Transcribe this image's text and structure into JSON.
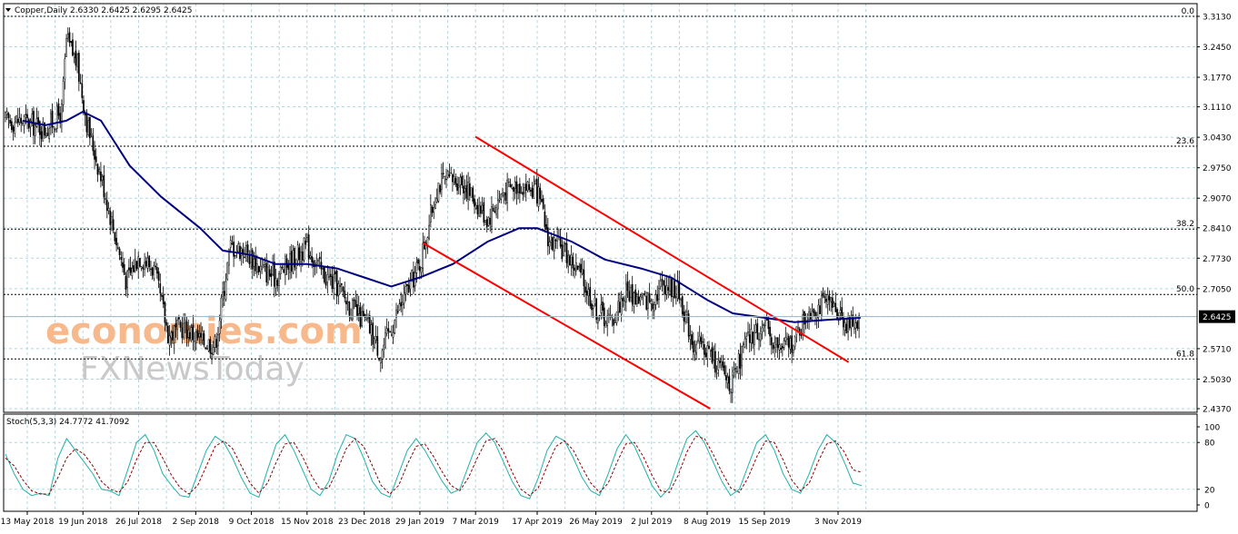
{
  "chart_data": [
    {
      "type": "candlestick",
      "symbol": "Copper",
      "timeframe": "Daily",
      "header": "Copper,Daily  2.6330 2.6425 2.6295 2.6425",
      "ohlc": {
        "open": 2.633,
        "high": 2.6425,
        "low": 2.6295,
        "close": 2.6425
      },
      "current_price": "2.6425",
      "price_ticks": [
        "3.3130",
        "3.2450",
        "3.1770",
        "3.1110",
        "3.0430",
        "2.9750",
        "2.9070",
        "2.8410",
        "2.7730",
        "2.7050",
        "2.6425",
        "2.5710",
        "2.5030",
        "2.4370"
      ],
      "x_ticks": [
        "13 May 2018",
        "19 Jun 2018",
        "26 Jul 2018",
        "2 Sep 2018",
        "9 Oct 2018",
        "15 Nov 2018",
        "23 Dec 2018",
        "29 Jan 2019",
        "7 Mar 2019",
        "17 Apr 2019",
        "26 May 2019",
        "2 Jul 2019",
        "8 Aug 2019",
        "15 Sep 2019",
        "3 Nov 2019"
      ],
      "ylim": [
        2.437,
        3.313
      ],
      "fibonacci_levels": [
        {
          "label": "0.0",
          "price": 3.313
        },
        {
          "label": "23.6",
          "price": 3.023
        },
        {
          "label": "38.2",
          "price": 2.838
        },
        {
          "label": "50.0",
          "price": 2.692
        },
        {
          "label": "61.8",
          "price": 2.548
        }
      ],
      "price_path": [
        {
          "date": "2018-05-10",
          "close": 3.08
        },
        {
          "date": "2018-05-25",
          "close": 3.06
        },
        {
          "date": "2018-06-05",
          "close": 3.1
        },
        {
          "date": "2018-06-08",
          "close": 3.26
        },
        {
          "date": "2018-06-15",
          "close": 3.21
        },
        {
          "date": "2018-06-22",
          "close": 3.07
        },
        {
          "date": "2018-07-03",
          "close": 2.93
        },
        {
          "date": "2018-07-10",
          "close": 2.83
        },
        {
          "date": "2018-07-18",
          "close": 2.72
        },
        {
          "date": "2018-07-26",
          "close": 2.78
        },
        {
          "date": "2018-08-05",
          "close": 2.75
        },
        {
          "date": "2018-08-15",
          "close": 2.6
        },
        {
          "date": "2018-08-25",
          "close": 2.62
        },
        {
          "date": "2018-09-05",
          "close": 2.59
        },
        {
          "date": "2018-09-15",
          "close": 2.58
        },
        {
          "date": "2018-09-25",
          "close": 2.8
        },
        {
          "date": "2018-10-05",
          "close": 2.79
        },
        {
          "date": "2018-10-15",
          "close": 2.75
        },
        {
          "date": "2018-10-25",
          "close": 2.73
        },
        {
          "date": "2018-11-05",
          "close": 2.77
        },
        {
          "date": "2018-11-15",
          "close": 2.8
        },
        {
          "date": "2018-11-25",
          "close": 2.74
        },
        {
          "date": "2018-12-05",
          "close": 2.71
        },
        {
          "date": "2018-12-15",
          "close": 2.66
        },
        {
          "date": "2018-12-26",
          "close": 2.62
        },
        {
          "date": "2019-01-03",
          "close": 2.56
        },
        {
          "date": "2019-01-15",
          "close": 2.66
        },
        {
          "date": "2019-01-29",
          "close": 2.76
        },
        {
          "date": "2019-02-10",
          "close": 2.94
        },
        {
          "date": "2019-02-25",
          "close": 2.95
        },
        {
          "date": "2019-03-07",
          "close": 2.9
        },
        {
          "date": "2019-03-15",
          "close": 2.86
        },
        {
          "date": "2019-03-25",
          "close": 2.92
        },
        {
          "date": "2019-04-05",
          "close": 2.94
        },
        {
          "date": "2019-04-17",
          "close": 2.92
        },
        {
          "date": "2019-04-25",
          "close": 2.81
        },
        {
          "date": "2019-05-05",
          "close": 2.79
        },
        {
          "date": "2019-05-15",
          "close": 2.74
        },
        {
          "date": "2019-05-26",
          "close": 2.66
        },
        {
          "date": "2019-06-05",
          "close": 2.63
        },
        {
          "date": "2019-06-15",
          "close": 2.7
        },
        {
          "date": "2019-06-25",
          "close": 2.68
        },
        {
          "date": "2019-07-02",
          "close": 2.68
        },
        {
          "date": "2019-07-10",
          "close": 2.72
        },
        {
          "date": "2019-07-20",
          "close": 2.7
        },
        {
          "date": "2019-07-30",
          "close": 2.58
        },
        {
          "date": "2019-08-08",
          "close": 2.57
        },
        {
          "date": "2019-08-18",
          "close": 2.52
        },
        {
          "date": "2019-08-25",
          "close": 2.49
        },
        {
          "date": "2019-09-02",
          "close": 2.58
        },
        {
          "date": "2019-09-10",
          "close": 2.61
        },
        {
          "date": "2019-09-15",
          "close": 2.62
        },
        {
          "date": "2019-09-25",
          "close": 2.57
        },
        {
          "date": "2019-10-05",
          "close": 2.59
        },
        {
          "date": "2019-10-15",
          "close": 2.66
        },
        {
          "date": "2019-10-25",
          "close": 2.67
        },
        {
          "date": "2019-11-03",
          "close": 2.66
        },
        {
          "date": "2019-11-10",
          "close": 2.62
        },
        {
          "date": "2019-11-18",
          "close": 2.6425
        }
      ],
      "moving_average": [
        {
          "date": "2018-05-10",
          "value": 3.08
        },
        {
          "date": "2018-05-25",
          "value": 3.07
        },
        {
          "date": "2018-06-08",
          "value": 3.08
        },
        {
          "date": "2018-06-19",
          "value": 3.1
        },
        {
          "date": "2018-07-01",
          "value": 3.08
        },
        {
          "date": "2018-07-20",
          "value": 2.98
        },
        {
          "date": "2018-08-10",
          "value": 2.91
        },
        {
          "date": "2018-09-05",
          "value": 2.84
        },
        {
          "date": "2018-09-20",
          "value": 2.79
        },
        {
          "date": "2018-10-09",
          "value": 2.78
        },
        {
          "date": "2018-10-25",
          "value": 2.76
        },
        {
          "date": "2018-11-15",
          "value": 2.76
        },
        {
          "date": "2018-12-05",
          "value": 2.75
        },
        {
          "date": "2018-12-23",
          "value": 2.73
        },
        {
          "date": "2019-01-10",
          "value": 2.71
        },
        {
          "date": "2019-01-29",
          "value": 2.73
        },
        {
          "date": "2019-02-20",
          "value": 2.76
        },
        {
          "date": "2019-03-15",
          "value": 2.81
        },
        {
          "date": "2019-04-05",
          "value": 2.84
        },
        {
          "date": "2019-04-17",
          "value": 2.84
        },
        {
          "date": "2019-05-10",
          "value": 2.81
        },
        {
          "date": "2019-06-01",
          "value": 2.77
        },
        {
          "date": "2019-06-25",
          "value": 2.75
        },
        {
          "date": "2019-07-15",
          "value": 2.73
        },
        {
          "date": "2019-08-08",
          "value": 2.68
        },
        {
          "date": "2019-08-25",
          "value": 2.65
        },
        {
          "date": "2019-09-15",
          "value": 2.64
        },
        {
          "date": "2019-10-05",
          "value": 2.63
        },
        {
          "date": "2019-10-25",
          "value": 2.635
        },
        {
          "date": "2019-11-18",
          "value": 2.64
        }
      ],
      "channel_lines": [
        {
          "name": "upper",
          "from": {
            "date": "2019-03-07",
            "price": 3.044
          },
          "to": {
            "date": "2019-11-10",
            "price": 2.541
          }
        },
        {
          "name": "lower",
          "from": {
            "date": "2019-01-31",
            "price": 2.807
          },
          "to": {
            "date": "2019-08-10",
            "price": 2.437
          }
        }
      ],
      "colors": {
        "candle": "#000000",
        "moving_average": "#000080",
        "channel": "#ff0000",
        "fib_line": "#000000",
        "grid": "#b5d5dc",
        "price_label_bg": "#000000",
        "price_label_text": "#ffffff"
      },
      "watermark": {
        "line1": "economies.com",
        "line2": "FXNewsToday"
      }
    },
    {
      "type": "line",
      "indicator": "Stoch(5,3,3)",
      "header": "Stoch(5,3,3) 24.7772 41.7092",
      "main_value": 24.7772,
      "signal_value": 41.7092,
      "ylim": [
        0,
        100
      ],
      "y_ticks": [
        "100",
        "80",
        "20",
        "0"
      ],
      "levels": [
        20,
        80
      ],
      "series": [
        {
          "style": "solid",
          "color": "#20b2aa",
          "values": [
            65,
            40,
            20,
            12,
            15,
            12,
            60,
            85,
            70,
            55,
            40,
            20,
            18,
            12,
            45,
            80,
            90,
            70,
            40,
            25,
            12,
            10,
            40,
            70,
            88,
            80,
            60,
            35,
            15,
            10,
            45,
            78,
            90,
            70,
            45,
            20,
            12,
            30,
            65,
            90,
            85,
            60,
            30,
            15,
            10,
            40,
            70,
            85,
            70,
            50,
            30,
            15,
            20,
            50,
            80,
            92,
            80,
            55,
            30,
            12,
            8,
            35,
            70,
            88,
            82,
            60,
            35,
            18,
            12,
            40,
            72,
            90,
            75,
            50,
            25,
            10,
            22,
            55,
            85,
            95,
            80,
            55,
            30,
            12,
            20,
            50,
            80,
            90,
            70,
            40,
            20,
            15,
            40,
            70,
            90,
            80,
            55,
            28,
            24.7772
          ]
        },
        {
          "style": "dashed",
          "color": "#8b0000",
          "values": [
            60,
            50,
            32,
            18,
            14,
            14,
            35,
            60,
            72,
            65,
            50,
            30,
            20,
            16,
            30,
            58,
            80,
            80,
            60,
            38,
            22,
            14,
            25,
            50,
            75,
            82,
            72,
            50,
            28,
            15,
            28,
            55,
            78,
            80,
            62,
            38,
            20,
            22,
            45,
            72,
            85,
            75,
            50,
            25,
            14,
            25,
            52,
            75,
            78,
            62,
            42,
            25,
            18,
            35,
            60,
            82,
            85,
            68,
            42,
            20,
            12,
            22,
            50,
            75,
            82,
            70,
            48,
            28,
            16,
            28,
            55,
            78,
            80,
            62,
            38,
            18,
            16,
            38,
            68,
            88,
            85,
            65,
            42,
            22,
            16,
            35,
            62,
            82,
            80,
            58,
            32,
            18,
            28,
            55,
            78,
            82,
            68,
            45,
            41.7092
          ]
        }
      ]
    }
  ]
}
